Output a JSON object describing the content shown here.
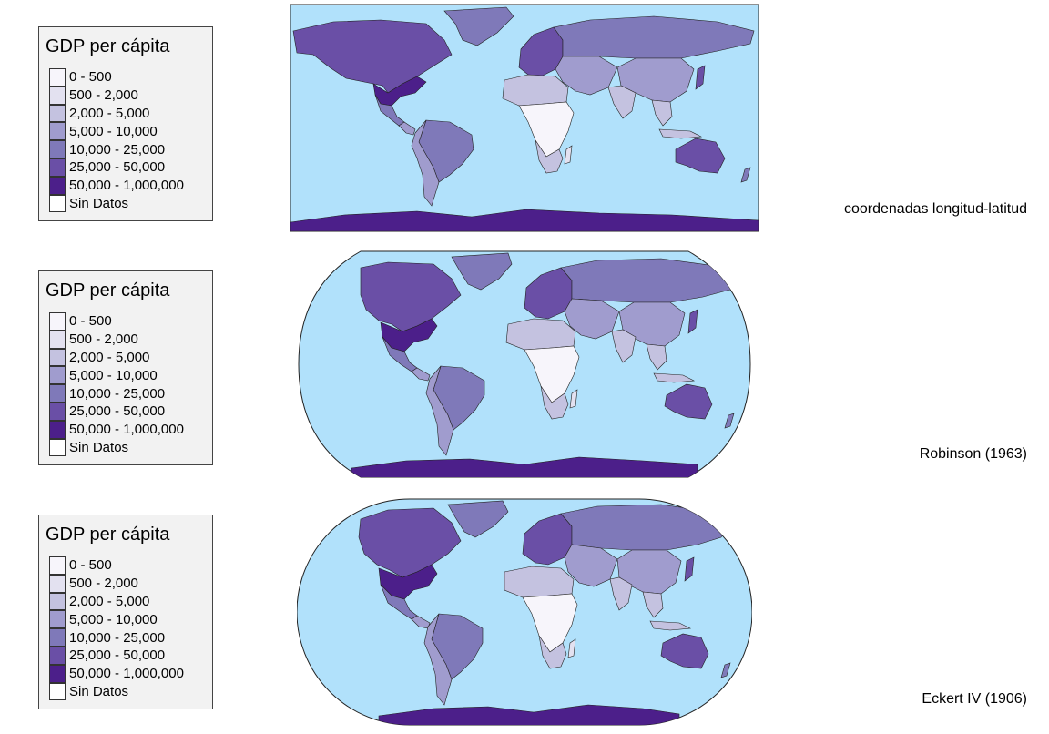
{
  "legend": {
    "title": "GDP per cápita",
    "items": [
      {
        "label": "0 - 500",
        "color": "#f7f5fb"
      },
      {
        "label": "500 - 2,000",
        "color": "#e3e1f0"
      },
      {
        "label": "2,000 - 5,000",
        "color": "#c4c2e0"
      },
      {
        "label": "5,000 - 10,000",
        "color": "#a09cce"
      },
      {
        "label": "10,000 - 25,000",
        "color": "#7f79b9"
      },
      {
        "label": "25,000 - 50,000",
        "color": "#6a4fa6"
      },
      {
        "label": "50,000 - 1,000,000",
        "color": "#4c1f8a"
      },
      {
        "label": "Sin Datos",
        "color": "#ffffff"
      }
    ]
  },
  "colors": {
    "ocean": "#b1e1fb",
    "border": "#222222"
  },
  "maps": [
    {
      "projection": "coordenadas longitud-latitud",
      "shape": "rectangle"
    },
    {
      "projection": "Robinson (1963)",
      "shape": "robinson"
    },
    {
      "projection": "Eckert IV (1906)",
      "shape": "eckert"
    }
  ]
}
